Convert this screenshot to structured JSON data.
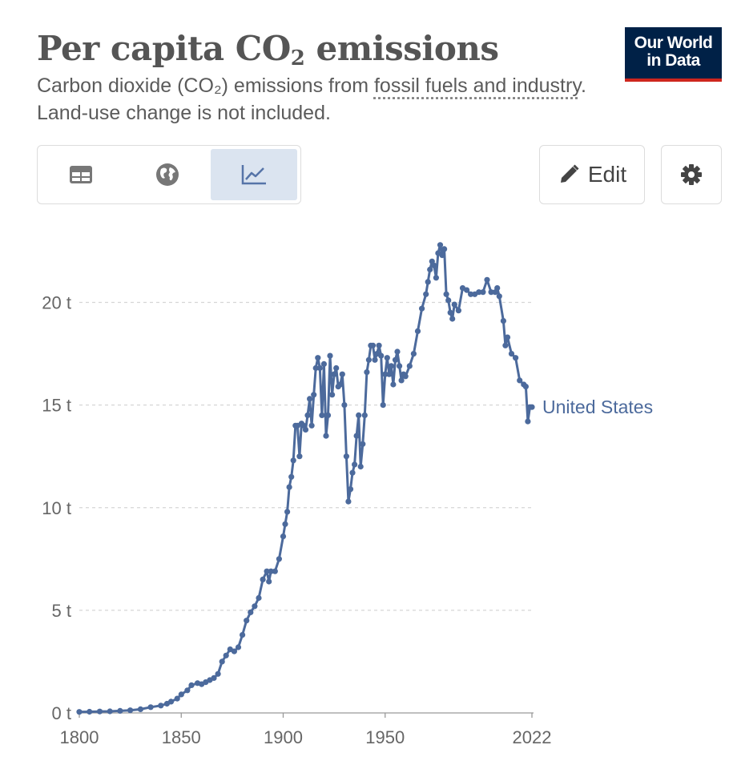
{
  "header": {
    "title_main": "Per capita CO",
    "title_sub": "2",
    "title_end": " emissions",
    "subtitle_1": "Carbon dioxide (CO",
    "subtitle_2": "₂",
    "subtitle_3": ") emissions from ",
    "subtitle_link": "fossil fuels and industry",
    "subtitle_4": ". Land-use change is not included."
  },
  "logo": {
    "line1": "Our World",
    "line2": "in Data",
    "bg": "#002147",
    "accent": "#ce261e"
  },
  "toolbar": {
    "tabs": [
      {
        "icon": "table-icon",
        "active": false
      },
      {
        "icon": "globe-icon",
        "active": false
      },
      {
        "icon": "line-chart-icon",
        "active": true
      }
    ],
    "edit_label": "Edit",
    "edit_icon": "pencil-icon",
    "settings_icon": "gear-icon"
  },
  "chart_data": {
    "type": "line",
    "title": "",
    "xlabel": "",
    "ylabel": "",
    "xlim": [
      1800,
      2022
    ],
    "ylim": [
      0,
      24
    ],
    "x_ticks": [
      {
        "value": 1800,
        "label": "1800"
      },
      {
        "value": 1850,
        "label": "1850"
      },
      {
        "value": 1900,
        "label": "1900"
      },
      {
        "value": 1950,
        "label": "1950"
      },
      {
        "value": 2022,
        "label": "2022"
      }
    ],
    "y_ticks": [
      {
        "value": 0,
        "label": "0 t"
      },
      {
        "value": 5,
        "label": "5 t"
      },
      {
        "value": 10,
        "label": "10 t"
      },
      {
        "value": 15,
        "label": "15 t"
      },
      {
        "value": 20,
        "label": "20 t"
      }
    ],
    "grid": "horizontal dashed",
    "legend": "end-of-line label",
    "series": [
      {
        "name": "United States",
        "color": "#4c6a9c",
        "x": [
          1800,
          1805,
          1810,
          1815,
          1820,
          1825,
          1830,
          1835,
          1840,
          1843,
          1845,
          1848,
          1850,
          1853,
          1855,
          1858,
          1860,
          1862,
          1864,
          1866,
          1868,
          1870,
          1872,
          1874,
          1876,
          1878,
          1880,
          1882,
          1884,
          1886,
          1888,
          1890,
          1892,
          1893,
          1894,
          1896,
          1898,
          1900,
          1901,
          1902,
          1903,
          1904,
          1905,
          1906,
          1907,
          1908,
          1909,
          1910,
          1911,
          1912,
          1913,
          1914,
          1915,
          1916,
          1917,
          1918,
          1919,
          1920,
          1921,
          1922,
          1923,
          1924,
          1925,
          1926,
          1927,
          1928,
          1929,
          1930,
          1931,
          1932,
          1933,
          1934,
          1935,
          1936,
          1937,
          1938,
          1939,
          1940,
          1941,
          1942,
          1943,
          1944,
          1945,
          1946,
          1947,
          1948,
          1949,
          1950,
          1951,
          1952,
          1953,
          1954,
          1955,
          1956,
          1957,
          1958,
          1959,
          1960,
          1962,
          1964,
          1966,
          1968,
          1970,
          1971,
          1972,
          1973,
          1974,
          1975,
          1976,
          1977,
          1978,
          1979,
          1980,
          1981,
          1982,
          1983,
          1984,
          1986,
          1988,
          1990,
          1992,
          1994,
          1996,
          1998,
          2000,
          2002,
          2004,
          2005,
          2006,
          2008,
          2009,
          2010,
          2012,
          2014,
          2016,
          2018,
          2019,
          2020,
          2021,
          2022
        ],
        "values": [
          0.05,
          0.06,
          0.07,
          0.08,
          0.1,
          0.13,
          0.18,
          0.28,
          0.36,
          0.45,
          0.55,
          0.7,
          0.9,
          1.1,
          1.35,
          1.45,
          1.4,
          1.5,
          1.6,
          1.7,
          1.9,
          2.5,
          2.8,
          3.1,
          3.0,
          3.2,
          3.8,
          4.5,
          4.9,
          5.2,
          5.6,
          6.5,
          6.9,
          6.4,
          6.9,
          6.9,
          7.5,
          8.6,
          9.2,
          9.8,
          11.0,
          11.5,
          12.3,
          14.0,
          14.0,
          12.5,
          14.1,
          14.0,
          13.8,
          14.5,
          15.3,
          14.0,
          15.5,
          16.8,
          17.3,
          16.8,
          14.5,
          17.0,
          13.5,
          14.5,
          17.4,
          15.5,
          16.5,
          16.8,
          15.9,
          16.0,
          16.5,
          15.0,
          12.5,
          10.3,
          10.9,
          11.7,
          12.1,
          13.5,
          14.5,
          12.0,
          13.1,
          14.5,
          16.6,
          17.2,
          17.9,
          17.9,
          17.2,
          17.5,
          17.9,
          17.4,
          15.0,
          16.5,
          17.3,
          16.5,
          16.9,
          16.0,
          17.2,
          17.6,
          16.9,
          16.2,
          16.5,
          16.4,
          16.9,
          17.5,
          18.6,
          19.7,
          20.4,
          21.0,
          21.6,
          22.0,
          21.8,
          21.2,
          22.4,
          22.8,
          22.3,
          22.6,
          20.4,
          20.1,
          19.5,
          19.2,
          19.9,
          19.6,
          20.7,
          20.6,
          20.4,
          20.4,
          20.5,
          20.5,
          21.1,
          20.5,
          20.5,
          20.7,
          20.3,
          19.1,
          17.9,
          18.3,
          17.5,
          17.3,
          16.2,
          16.0,
          15.9,
          14.2,
          14.9,
          14.9
        ]
      }
    ]
  }
}
